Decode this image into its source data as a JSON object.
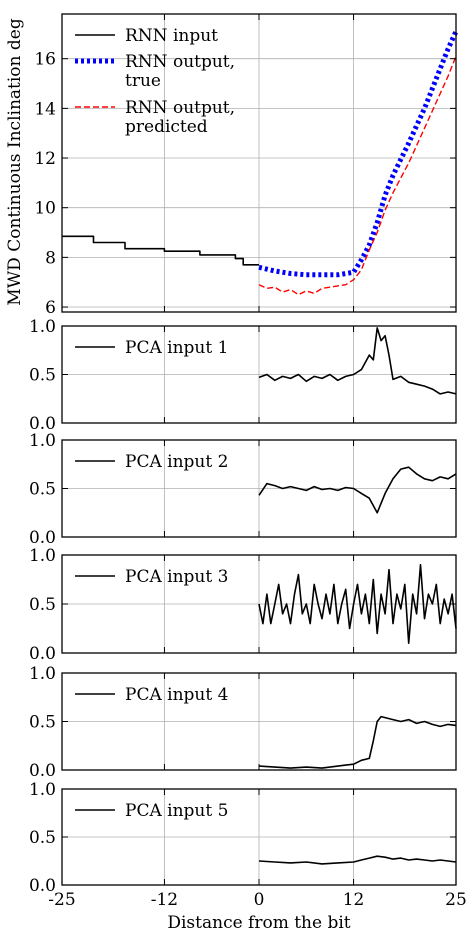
{
  "chart_data": [
    {
      "type": "line",
      "ylabel": "MWD Continuous Inclination deg",
      "ylim": [
        5.8,
        17.8
      ],
      "yticks": [
        6,
        8,
        10,
        12,
        14,
        16
      ],
      "xlim": [
        -25,
        25
      ],
      "xticks": [
        -25,
        -12,
        0,
        12,
        25
      ],
      "grid": true,
      "legend_position": "top-left",
      "series": [
        {
          "name": "RNN input",
          "color": "#000000",
          "style": "solid",
          "x": [
            -25,
            -21,
            -21,
            -17,
            -17,
            -12,
            -12,
            -7.5,
            -7.5,
            -3,
            -3,
            -2,
            -2,
            0
          ],
          "y": [
            8.85,
            8.85,
            8.6,
            8.6,
            8.35,
            8.35,
            8.25,
            8.25,
            8.1,
            8.1,
            7.95,
            7.95,
            7.7,
            7.7
          ]
        },
        {
          "name": "RNN output, true",
          "color": "#0000ff",
          "style": "dotted",
          "x": [
            0,
            2,
            4,
            6,
            8,
            10,
            12,
            13,
            14,
            15,
            16,
            17,
            18,
            19,
            20,
            21,
            22,
            23,
            24,
            25
          ],
          "y": [
            7.6,
            7.45,
            7.35,
            7.3,
            7.3,
            7.3,
            7.4,
            7.9,
            8.5,
            9.4,
            10.5,
            11.3,
            11.95,
            12.6,
            13.3,
            14.0,
            14.8,
            15.6,
            16.4,
            17.1
          ]
        },
        {
          "name": "RNN output, predicted",
          "color": "#ff0000",
          "style": "dashed",
          "x": [
            0,
            1,
            2,
            3,
            4,
            5,
            6,
            7,
            8,
            9,
            10,
            11,
            12,
            13,
            14,
            15,
            16,
            17,
            18,
            19,
            20,
            21,
            22,
            23,
            24,
            25
          ],
          "y": [
            6.9,
            6.75,
            6.8,
            6.6,
            6.7,
            6.5,
            6.65,
            6.55,
            6.75,
            6.8,
            6.85,
            6.9,
            7.1,
            7.5,
            8.3,
            9.0,
            9.9,
            10.6,
            11.2,
            11.8,
            12.5,
            13.2,
            13.9,
            14.6,
            15.3,
            16.1
          ]
        }
      ]
    },
    {
      "type": "line",
      "ylim": [
        0,
        1
      ],
      "yticks": [
        0.0,
        0.5,
        1.0
      ],
      "xlim": [
        -25,
        25
      ],
      "grid": true,
      "series": [
        {
          "name": "PCA input 1",
          "color": "#000000",
          "style": "solid",
          "x": [
            0,
            1,
            2,
            3,
            4,
            5,
            6,
            7,
            8,
            9,
            10,
            11,
            12,
            13,
            14,
            14.5,
            15,
            15.5,
            16,
            16.5,
            17,
            18,
            19,
            20,
            21,
            22,
            23,
            24,
            25
          ],
          "y": [
            0.47,
            0.5,
            0.44,
            0.48,
            0.46,
            0.5,
            0.43,
            0.48,
            0.46,
            0.5,
            0.44,
            0.48,
            0.5,
            0.55,
            0.7,
            0.65,
            0.98,
            0.85,
            0.9,
            0.7,
            0.45,
            0.48,
            0.42,
            0.4,
            0.38,
            0.35,
            0.3,
            0.32,
            0.3
          ]
        }
      ]
    },
    {
      "type": "line",
      "ylim": [
        0,
        1
      ],
      "yticks": [
        0.0,
        0.5,
        1.0
      ],
      "xlim": [
        -25,
        25
      ],
      "grid": true,
      "series": [
        {
          "name": "PCA input 2",
          "color": "#000000",
          "style": "solid",
          "x": [
            0,
            1,
            2,
            3,
            4,
            5,
            6,
            7,
            8,
            9,
            10,
            11,
            12,
            13,
            14,
            15,
            16,
            17,
            18,
            19,
            20,
            21,
            22,
            23,
            24,
            25
          ],
          "y": [
            0.43,
            0.55,
            0.53,
            0.5,
            0.52,
            0.5,
            0.48,
            0.52,
            0.49,
            0.5,
            0.48,
            0.51,
            0.5,
            0.45,
            0.4,
            0.25,
            0.45,
            0.6,
            0.7,
            0.72,
            0.65,
            0.6,
            0.58,
            0.62,
            0.6,
            0.65
          ]
        }
      ]
    },
    {
      "type": "line",
      "ylim": [
        0,
        1
      ],
      "yticks": [
        0.0,
        0.5,
        1.0
      ],
      "xlim": [
        -25,
        25
      ],
      "grid": true,
      "series": [
        {
          "name": "PCA input 3",
          "color": "#000000",
          "style": "solid",
          "x": [
            0,
            0.5,
            1,
            1.5,
            2,
            2.5,
            3,
            3.5,
            4,
            4.5,
            5,
            5.5,
            6,
            6.5,
            7,
            7.5,
            8,
            8.5,
            9,
            9.5,
            10,
            10.5,
            11,
            11.5,
            12,
            12.5,
            13,
            13.5,
            14,
            14.5,
            15,
            15.5,
            16,
            16.5,
            17,
            17.5,
            18,
            18.5,
            19,
            19.5,
            20,
            20.5,
            21,
            21.5,
            22,
            22.5,
            23,
            23.5,
            24,
            24.5,
            25
          ],
          "y": [
            0.5,
            0.3,
            0.6,
            0.3,
            0.5,
            0.7,
            0.4,
            0.5,
            0.3,
            0.6,
            0.8,
            0.4,
            0.5,
            0.3,
            0.7,
            0.5,
            0.35,
            0.6,
            0.4,
            0.7,
            0.3,
            0.5,
            0.65,
            0.25,
            0.5,
            0.7,
            0.4,
            0.6,
            0.3,
            0.75,
            0.2,
            0.6,
            0.4,
            0.85,
            0.3,
            0.6,
            0.45,
            0.7,
            0.1,
            0.6,
            0.4,
            0.9,
            0.35,
            0.6,
            0.5,
            0.7,
            0.3,
            0.55,
            0.4,
            0.6,
            0.25
          ]
        }
      ]
    },
    {
      "type": "line",
      "ylim": [
        0,
        1
      ],
      "yticks": [
        0.0,
        0.5,
        1.0
      ],
      "xlim": [
        -25,
        25
      ],
      "grid": true,
      "series": [
        {
          "name": "PCA input 4",
          "color": "#000000",
          "style": "solid",
          "x": [
            0,
            2,
            4,
            6,
            8,
            10,
            11,
            12,
            13,
            14,
            14.5,
            15,
            15.5,
            16,
            17,
            18,
            19,
            20,
            21,
            22,
            23,
            24,
            25
          ],
          "y": [
            0.04,
            0.03,
            0.02,
            0.03,
            0.02,
            0.04,
            0.05,
            0.06,
            0.1,
            0.12,
            0.3,
            0.5,
            0.55,
            0.54,
            0.52,
            0.5,
            0.52,
            0.48,
            0.5,
            0.47,
            0.45,
            0.47,
            0.46
          ]
        }
      ]
    },
    {
      "type": "line",
      "ylim": [
        0,
        1
      ],
      "yticks": [
        0.0,
        0.5,
        1.0
      ],
      "xlim": [
        -25,
        25
      ],
      "xticks": [
        -25,
        -12,
        0,
        12,
        25
      ],
      "xlabel": "Distance from the bit",
      "grid": true,
      "series": [
        {
          "name": "PCA input 5",
          "color": "#000000",
          "style": "solid",
          "x": [
            0,
            2,
            4,
            6,
            8,
            10,
            12,
            13,
            14,
            15,
            16,
            17,
            18,
            19,
            20,
            21,
            22,
            23,
            24,
            25
          ],
          "y": [
            0.25,
            0.24,
            0.23,
            0.24,
            0.22,
            0.23,
            0.24,
            0.26,
            0.28,
            0.3,
            0.29,
            0.27,
            0.28,
            0.26,
            0.27,
            0.26,
            0.25,
            0.26,
            0.25,
            0.24
          ]
        }
      ]
    }
  ]
}
